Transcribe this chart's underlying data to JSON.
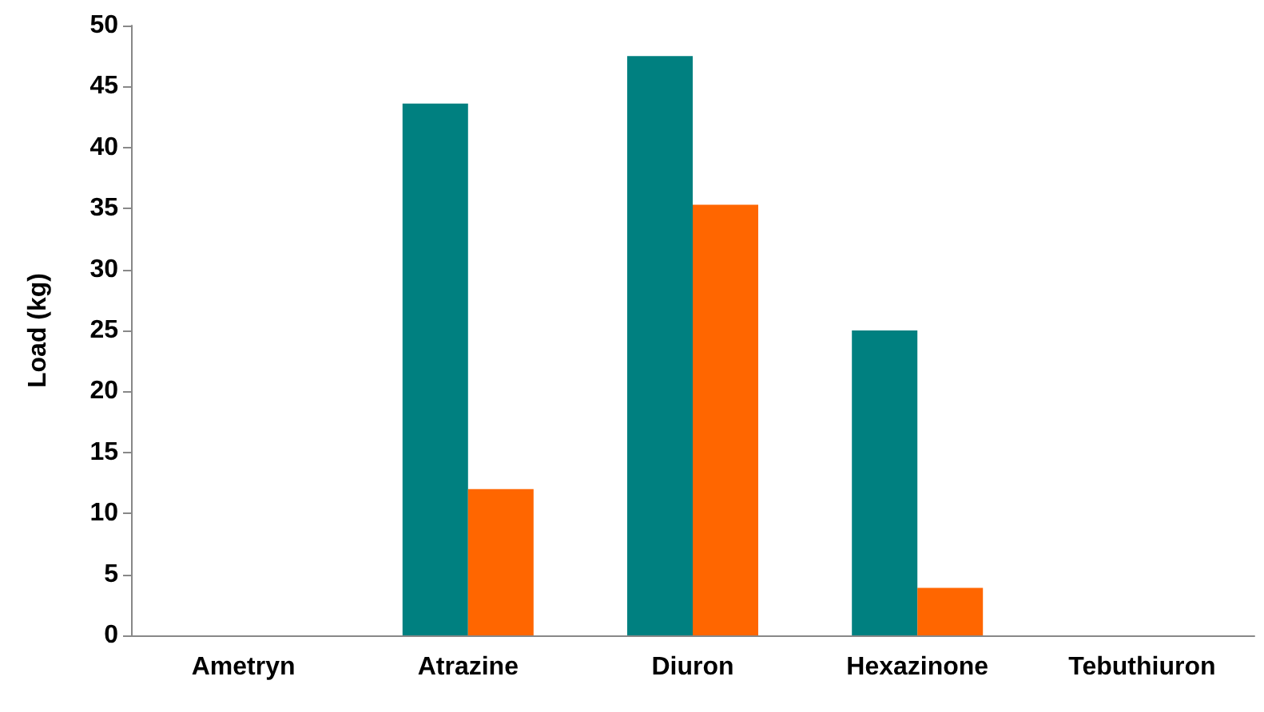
{
  "chart_data": {
    "type": "bar",
    "ylabel": "Load (kg)",
    "categories": [
      "Ametryn",
      "Atrazine",
      "Diuron",
      "Hexazinone",
      "Tebuthiuron"
    ],
    "series": [
      {
        "color": "#008080",
        "values": [
          0,
          43.6,
          47.5,
          25.0,
          0
        ]
      },
      {
        "color": "#ff6600",
        "values": [
          0,
          12.0,
          35.3,
          3.9,
          0
        ]
      }
    ],
    "ylim": [
      0,
      50
    ],
    "yticks": [
      0,
      5,
      10,
      15,
      20,
      25,
      30,
      35,
      40,
      45,
      50
    ],
    "grid": false
  }
}
